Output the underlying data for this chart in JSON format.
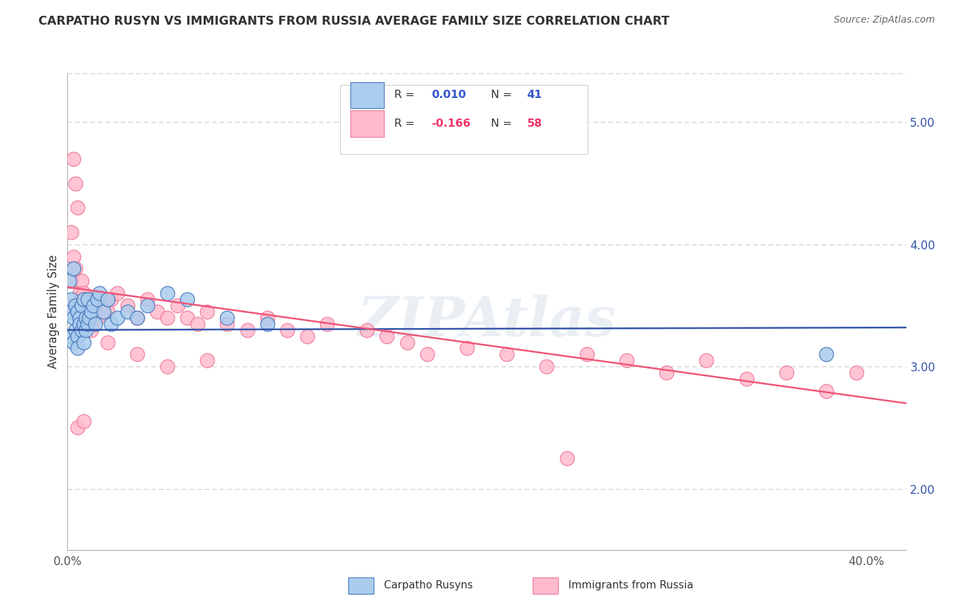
{
  "title": "CARPATHO RUSYN VS IMMIGRANTS FROM RUSSIA AVERAGE FAMILY SIZE CORRELATION CHART",
  "source_text": "Source: ZipAtlas.com",
  "ylabel": "Average Family Size",
  "legend_label1": "Carpatho Rusyns",
  "legend_label2": "Immigrants from Russia",
  "color_blue_fill": "#AACCEE",
  "color_blue_edge": "#4477BB",
  "color_pink_fill": "#FFBBCC",
  "color_pink_edge": "#EE7799",
  "color_blue_line": "#3355AA",
  "color_pink_line": "#EE5577",
  "watermark": "ZIPAtlas",
  "ylim": [
    1.5,
    5.4
  ],
  "yticks_right": [
    2.0,
    3.0,
    4.0,
    5.0
  ],
  "xlim": [
    0.0,
    0.42
  ],
  "blue_scatter_x": [
    0.001,
    0.001,
    0.002,
    0.002,
    0.003,
    0.003,
    0.003,
    0.004,
    0.004,
    0.005,
    0.005,
    0.005,
    0.006,
    0.006,
    0.007,
    0.007,
    0.008,
    0.008,
    0.008,
    0.009,
    0.009,
    0.01,
    0.01,
    0.011,
    0.012,
    0.013,
    0.014,
    0.015,
    0.016,
    0.018,
    0.02,
    0.022,
    0.025,
    0.03,
    0.035,
    0.04,
    0.06,
    0.08,
    0.1,
    0.38,
    0.05
  ],
  "blue_scatter_y": [
    3.7,
    3.45,
    3.55,
    3.25,
    3.8,
    3.4,
    3.2,
    3.5,
    3.3,
    3.45,
    3.25,
    3.15,
    3.4,
    3.35,
    3.5,
    3.3,
    3.55,
    3.35,
    3.2,
    3.4,
    3.3,
    3.55,
    3.35,
    3.4,
    3.45,
    3.5,
    3.35,
    3.55,
    3.6,
    3.45,
    3.55,
    3.35,
    3.4,
    3.45,
    3.4,
    3.5,
    3.55,
    3.4,
    3.35,
    3.1,
    3.6
  ],
  "pink_scatter_x": [
    0.001,
    0.002,
    0.003,
    0.004,
    0.005,
    0.006,
    0.007,
    0.008,
    0.009,
    0.01,
    0.012,
    0.013,
    0.015,
    0.018,
    0.02,
    0.022,
    0.025,
    0.03,
    0.035,
    0.04,
    0.045,
    0.05,
    0.055,
    0.06,
    0.065,
    0.07,
    0.08,
    0.09,
    0.1,
    0.11,
    0.12,
    0.13,
    0.15,
    0.16,
    0.17,
    0.18,
    0.2,
    0.22,
    0.24,
    0.26,
    0.28,
    0.3,
    0.32,
    0.34,
    0.36,
    0.38,
    0.395,
    0.005,
    0.008,
    0.002,
    0.003,
    0.004,
    0.012,
    0.02,
    0.035,
    0.05,
    0.07,
    0.25
  ],
  "pink_scatter_y": [
    3.5,
    3.7,
    4.7,
    4.5,
    4.3,
    3.6,
    3.7,
    3.6,
    3.5,
    3.55,
    3.45,
    3.55,
    3.4,
    3.5,
    3.45,
    3.55,
    3.6,
    3.5,
    3.4,
    3.55,
    3.45,
    3.4,
    3.5,
    3.4,
    3.35,
    3.45,
    3.35,
    3.3,
    3.4,
    3.3,
    3.25,
    3.35,
    3.3,
    3.25,
    3.2,
    3.1,
    3.15,
    3.1,
    3.0,
    3.1,
    3.05,
    2.95,
    3.05,
    2.9,
    2.95,
    2.8,
    2.95,
    2.5,
    2.55,
    4.1,
    3.9,
    3.8,
    3.3,
    3.2,
    3.1,
    3.0,
    3.05,
    2.25
  ],
  "blue_trend_x": [
    0.0,
    0.42
  ],
  "blue_trend_y": [
    3.3,
    3.32
  ],
  "pink_trend_x": [
    0.0,
    0.42
  ],
  "pink_trend_y": [
    3.65,
    2.7
  ]
}
